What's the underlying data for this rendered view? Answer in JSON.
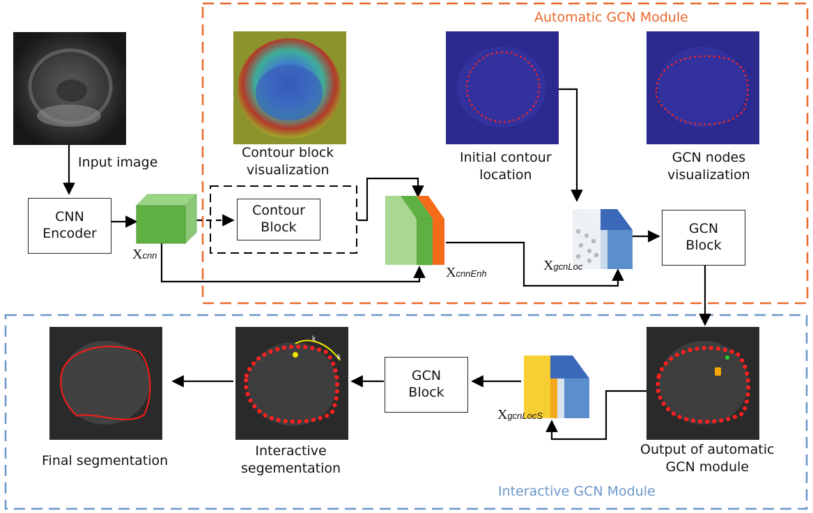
{
  "modules": {
    "automatic": {
      "title": "Automatic GCN Module",
      "color": "#e8682a"
    },
    "interactive": {
      "title": "Interactive GCN Module",
      "color": "#6a96c8"
    }
  },
  "labels": {
    "input_image": "Input image",
    "contour_vis": [
      "Contour block",
      "visualization"
    ],
    "initial_contour": [
      "Initial contour",
      "location"
    ],
    "gcn_nodes_vis": [
      "GCN nodes",
      "visualization"
    ],
    "output_auto": [
      "Output of automatic",
      "GCN module"
    ],
    "interactive_seg": [
      "Interactive",
      "segementation"
    ],
    "final_seg": "Final segmentation"
  },
  "blocks": {
    "cnn_encoder": [
      "CNN",
      "Encoder"
    ],
    "contour_block": [
      "Contour",
      "Block"
    ],
    "gcn_block_top": [
      "GCN",
      "Block"
    ],
    "gcn_block_bottom": [
      "GCN",
      "Block"
    ]
  },
  "variables": {
    "x_cnn": {
      "base": "X",
      "sub": "cnn"
    },
    "x_cnn_enh": {
      "base": "X",
      "sub": "cnnEnh"
    },
    "x_gcn_loc": {
      "base": "X",
      "sub": "gcnLoc"
    },
    "x_gcn_loc_s": {
      "base": "X",
      "sub": "gcnLocS"
    }
  },
  "annotations": {
    "k_top": "k",
    "k_right": "k"
  },
  "colors": {
    "green_front": "#5fb043",
    "green_top": "#9ad686",
    "green_side": "#a8d98f",
    "orange": "#f46c1a",
    "blue_front": "#5b8fcc",
    "blue_top": "#3b68b8",
    "yellow": "#f7cf33",
    "contour_red": "#e8262a"
  }
}
